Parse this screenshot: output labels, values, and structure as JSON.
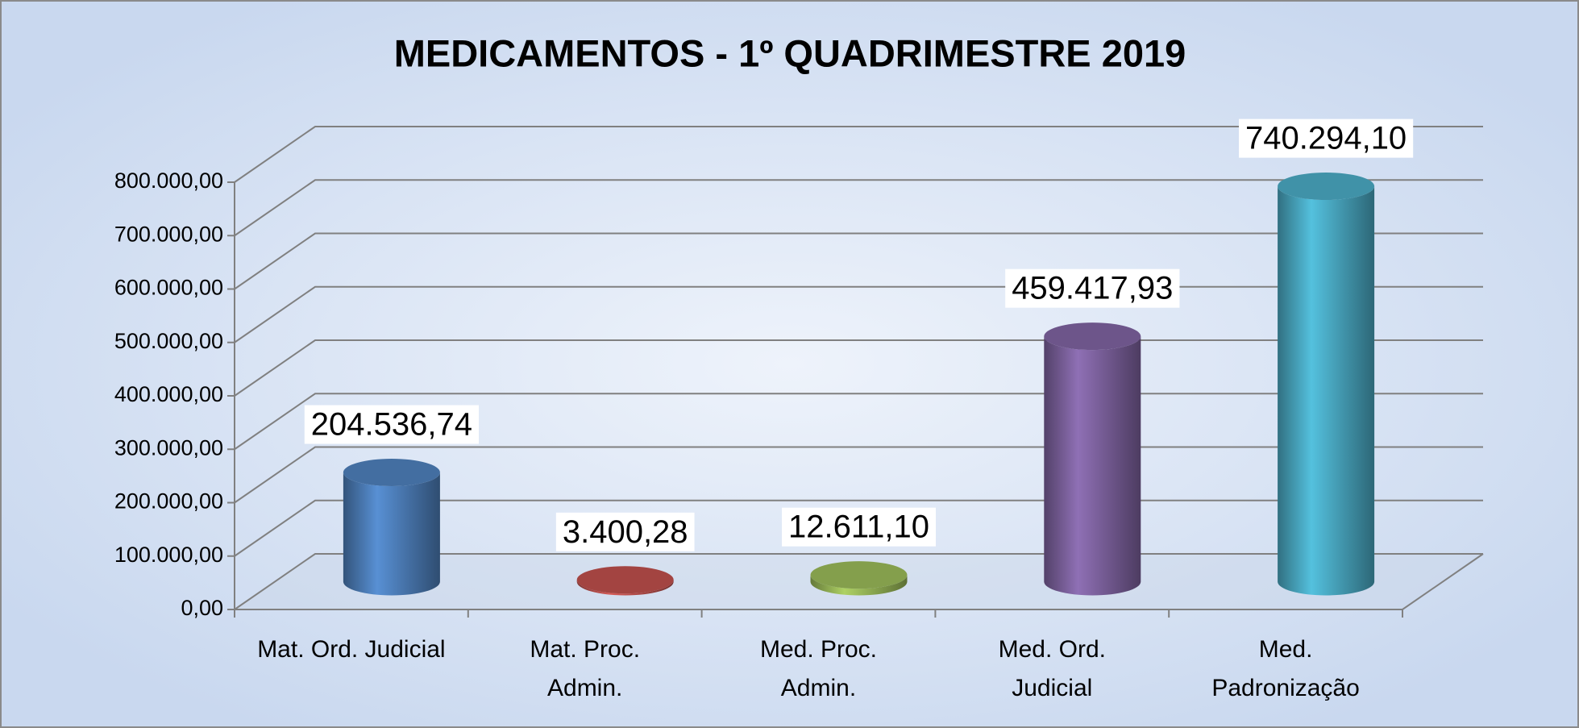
{
  "chart_data": {
    "type": "bar3d",
    "title": "MEDICAMENTOS  -  1º  QUADRIMESTRE  2019",
    "categories": [
      "Mat. Ord. Judicial",
      "Mat. Proc.\nAdmin.",
      "Med. Proc.\nAdmin.",
      "Med. Ord.\nJudicial",
      "Med.\nPadronização"
    ],
    "values": [
      204536.74,
      3400.28,
      12611.1,
      459417.93,
      740294.1
    ],
    "value_labels": [
      "204.536,74",
      "3.400,28",
      "12.611,10",
      "459.417,93",
      "740.294,10"
    ],
    "colors": [
      "#4f81bd",
      "#c0504d",
      "#9bbb59",
      "#8064a2",
      "#4bacc6"
    ],
    "ylim": [
      0,
      800000
    ],
    "yticks": [
      {
        "value": 0,
        "label": "0,00"
      },
      {
        "value": 100000,
        "label": "100.000,00"
      },
      {
        "value": 200000,
        "label": "200.000,00"
      },
      {
        "value": 300000,
        "label": "300.000,00"
      },
      {
        "value": 400000,
        "label": "400.000,00"
      },
      {
        "value": 500000,
        "label": "500.000,00"
      },
      {
        "value": 600000,
        "label": "600.000,00"
      },
      {
        "value": 700000,
        "label": "700.000,00"
      },
      {
        "value": 800000,
        "label": "800.000,00"
      }
    ],
    "grid": true
  }
}
